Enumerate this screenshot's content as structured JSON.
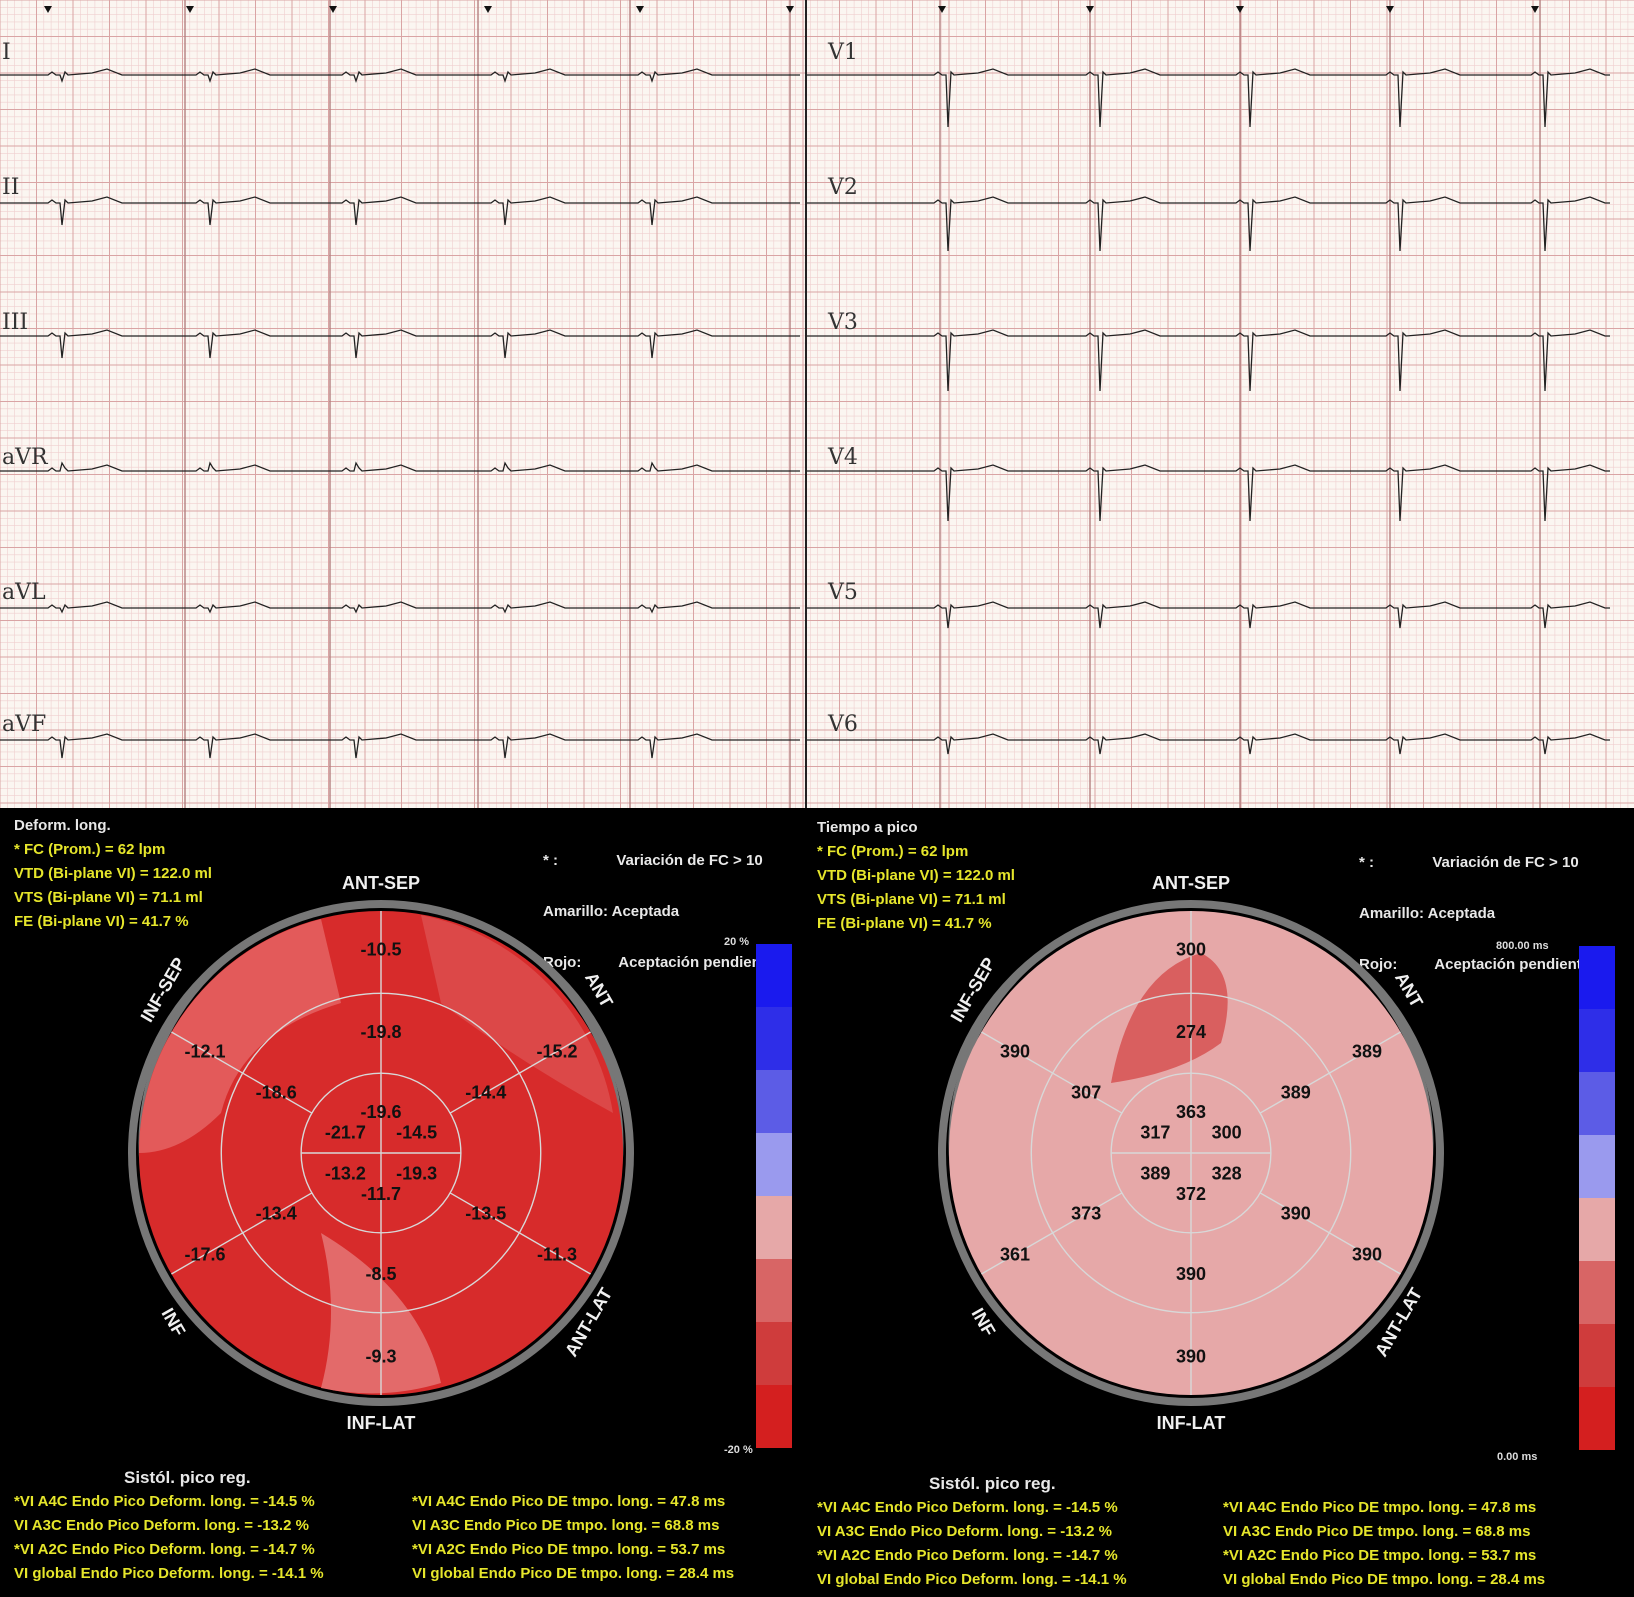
{
  "ecg": {
    "leads_left": [
      "I",
      "II",
      "III",
      "aVR",
      "aVL",
      "aVF"
    ],
    "leads_right": [
      "V1",
      "V2",
      "V3",
      "V4",
      "V5",
      "V6"
    ]
  },
  "left_panel": {
    "title": "Deform. long.",
    "stats": [
      "* FC (Prom.) = 62 lpm",
      "VTD (Bi-plane VI) = 122.0 ml",
      "VTS (Bi-plane VI) = 71.1 ml",
      "FE (Bi-plane VI) = 41.7 %"
    ],
    "legend": [
      "* :              Variación de FC > 10",
      "Amarillo: Aceptada",
      "Rojo:         Aceptación pendient"
    ],
    "orientation": {
      "top": "ANT-SEP",
      "upper_right": "ANT",
      "lower_right": "ANT-LAT",
      "bottom": "INF-LAT",
      "lower_left": "INF",
      "upper_left": "INF-SEP"
    },
    "segments": {
      "basal": [
        "-10.5",
        "-15.2",
        "-11.3",
        "-9.3",
        "-17.6",
        "-12.1"
      ],
      "mid": [
        "-19.8",
        "-14.4",
        "-13.5",
        "-8.5",
        "-13.4",
        "-18.6"
      ],
      "apical": [
        "-19.6",
        "-14.5",
        "-19.3",
        "-11.7",
        "-13.2",
        "-21.7"
      ]
    },
    "scale_top": "20 %",
    "scale_bottom": "-20 %",
    "footer_title": "Sistól. pico reg.",
    "footer_left": [
      "*VI A4C Endo Pico Deform. long. = -14.5 %",
      "VI A3C Endo Pico Deform. long. = -13.2 %",
      "*VI A2C Endo Pico Deform. long. = -14.7 %",
      "VI global Endo Pico Deform. long. = -14.1 %"
    ],
    "footer_right": [
      "*VI A4C Endo Pico DE tmpo. long. = 47.8 ms",
      "VI A3C Endo Pico DE tmpo. long. = 68.8 ms",
      "*VI A2C Endo Pico DE tmpo. long. = 53.7 ms",
      "VI global Endo Pico DE tmpo. long. = 28.4 ms"
    ]
  },
  "right_panel": {
    "title": "Tiempo a pico",
    "stats": [
      "* FC (Prom.) = 62 lpm",
      "VTD (Bi-plane VI) = 122.0 ml",
      "VTS (Bi-plane VI) = 71.1 ml",
      "FE (Bi-plane VI) = 41.7 %"
    ],
    "legend": [
      "* :              Variación de FC > 10",
      "Amarillo: Aceptada",
      "Rojo:         Aceptación pendient"
    ],
    "orientation": {
      "top": "ANT-SEP",
      "upper_right": "ANT",
      "lower_right": "ANT-LAT",
      "bottom": "INF-LAT",
      "lower_left": "INF",
      "upper_left": "INF-SEP"
    },
    "segments": {
      "basal": [
        "300",
        "389",
        "390",
        "390",
        "361",
        "390"
      ],
      "mid": [
        "274",
        "389",
        "390",
        "390",
        "373",
        "307"
      ],
      "apical": [
        "363",
        "300",
        "328",
        "372",
        "389",
        "317"
      ]
    },
    "scale_top": "800.00 ms",
    "scale_bottom": "0.00 ms",
    "footer_title": "Sistól. pico reg.",
    "footer_left": [
      "*VI A4C Endo Pico Deform. long. = -14.5 %",
      "VI A3C Endo Pico Deform. long. = -13.2 %",
      "*VI A2C Endo Pico Deform. long. = -14.7 %",
      "VI global Endo Pico Deform. long. = -14.1 %"
    ],
    "footer_right": [
      "*VI A4C Endo Pico DE tmpo. long. = 47.8 ms",
      "VI A3C Endo Pico DE tmpo. long. = 68.8 ms",
      "*VI A2C Endo Pico DE tmpo. long. = 53.7 ms",
      "VI global Endo Pico DE tmpo. long. = 28.4 ms"
    ]
  },
  "colors": {
    "strain_fill": "#d52a2a",
    "time_fill": "#e6a8a8",
    "scale": [
      "#1a1aee",
      "#2e2ee8",
      "#5c5ce6",
      "#9a9aee",
      "#e6a8a8",
      "#d86565",
      "#cf3c3c",
      "#d41f1f"
    ]
  }
}
